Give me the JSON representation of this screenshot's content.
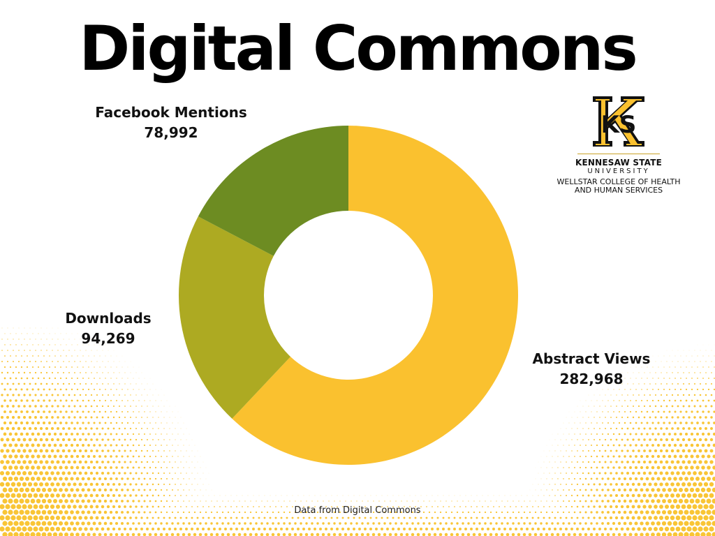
{
  "page": {
    "title": "Digital Commons",
    "footer": "Data from Digital Commons"
  },
  "logo": {
    "name": "KENNESAW STATE",
    "sub": "UNIVERSITY",
    "college_line1": "WELLSTAR COLLEGE OF HEALTH",
    "college_line2": "AND HUMAN SERVICES",
    "mark_text": "KS"
  },
  "chart_data": {
    "type": "pie",
    "donut": true,
    "start": "top, clockwise",
    "categories": [
      "Abstract Views",
      "Downloads",
      "Facebook Mentions"
    ],
    "values": [
      282968,
      94269,
      78992
    ],
    "value_labels": [
      "282,968",
      "94,269",
      "78,992"
    ],
    "colors": [
      "#FAC12F",
      "#ADAA22",
      "#6D8C22"
    ],
    "title": "",
    "legend": "none (labels placed beside slices)"
  },
  "colors": {
    "accent_yellow": "#FAC12F",
    "halftone": "#F9C535",
    "text": "#000000"
  }
}
